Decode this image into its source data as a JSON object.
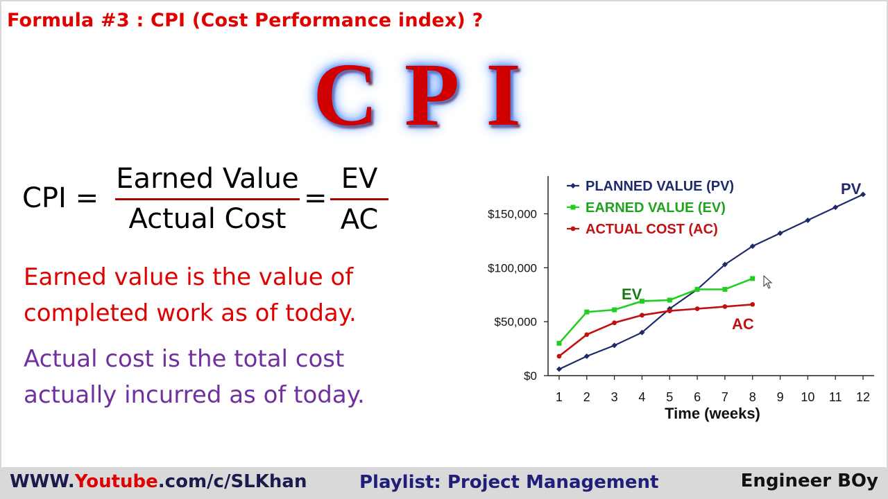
{
  "slide": {
    "title": "Formula #3 : CPI (Cost Performance index) ?",
    "big_heading": "CPI"
  },
  "formula": {
    "lhs": "CPI =",
    "numerator": "Earned Value",
    "denominator": "Actual Cost",
    "equals": "=",
    "short_numerator": "EV",
    "short_denominator": "AC"
  },
  "definitions": {
    "earned_value": "Earned value is the value of completed work as of today.",
    "actual_cost": "Actual cost is the total cost actually incurred as of today."
  },
  "footer": {
    "url_prefix": "WWW.",
    "url_brand": "Youtube",
    "url_suffix": ".com/c/SLKhan",
    "playlist": "Playlist: Project Management",
    "brand": "Engineer BOy"
  },
  "chart_data": {
    "type": "line",
    "title": "",
    "xlabel": "Time (weeks)",
    "ylabel": "",
    "x": [
      1,
      2,
      3,
      4,
      5,
      6,
      7,
      8,
      9,
      10,
      11,
      12
    ],
    "xlim": [
      0.6,
      12.4
    ],
    "ylim": [
      0,
      185000
    ],
    "y_ticks": [
      0,
      50000,
      100000,
      150000
    ],
    "y_tick_labels": [
      "$0",
      "$50,000",
      "$100,000",
      "$150,000"
    ],
    "grid": false,
    "legend_position": "top-left",
    "series": [
      {
        "name": "PLANNED VALUE (PV)",
        "short": "PV",
        "color": "#1f2a6b",
        "marker": "diamond",
        "x": [
          1,
          2,
          3,
          4,
          5,
          6,
          7,
          8,
          9,
          10,
          11,
          12
        ],
        "values": [
          6000,
          18000,
          28000,
          40000,
          62000,
          80000,
          103000,
          120000,
          132000,
          144000,
          156000,
          168000
        ]
      },
      {
        "name": "EARNED VALUE (EV)",
        "short": "EV",
        "color": "#1fce1f",
        "marker": "square",
        "x": [
          1,
          2,
          3,
          4,
          5,
          6,
          7,
          8
        ],
        "values": [
          30000,
          59000,
          61000,
          69000,
          70000,
          80000,
          80000,
          90000
        ]
      },
      {
        "name": "ACTUAL COST (AC)",
        "short": "AC",
        "color": "#c01010",
        "marker": "circle",
        "x": [
          1,
          2,
          3,
          4,
          5,
          6,
          7,
          8
        ],
        "values": [
          18000,
          38000,
          49000,
          56000,
          60000,
          62000,
          64000,
          66000
        ]
      }
    ],
    "annotations": [
      {
        "text": "PV",
        "color": "#1f2a6b"
      },
      {
        "text": "EV",
        "color": "#1a7a1a"
      },
      {
        "text": "AC",
        "color": "#c01010"
      }
    ]
  }
}
